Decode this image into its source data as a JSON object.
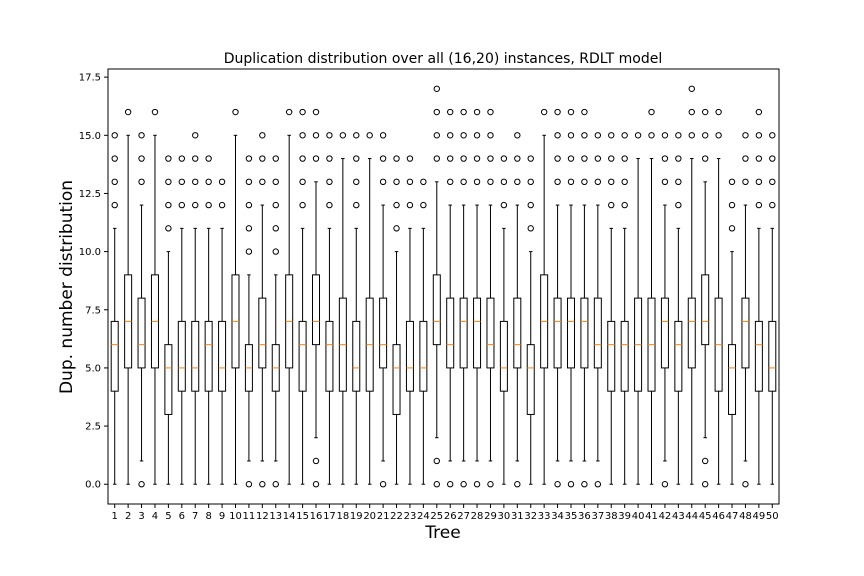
{
  "chart_data": {
    "type": "boxplot",
    "title": "Duplication distribution over all (16,20) instances, RDLT model",
    "xlabel": "Tree",
    "ylabel": "Dup. number distribution",
    "ylim": [
      -0.85,
      17.85
    ],
    "y_ticks": [
      "0.0",
      "2.5",
      "5.0",
      "7.5",
      "10.0",
      "12.5",
      "15.0",
      "17.5"
    ],
    "y_tick_values": [
      0,
      2.5,
      5,
      7.5,
      10,
      12.5,
      15,
      17.5
    ],
    "categories": [
      "1",
      "2",
      "3",
      "4",
      "5",
      "6",
      "7",
      "8",
      "9",
      "10",
      "11",
      "12",
      "13",
      "14",
      "15",
      "16",
      "17",
      "18",
      "19",
      "20",
      "21",
      "22",
      "23",
      "24",
      "25",
      "26",
      "27",
      "28",
      "29",
      "30",
      "31",
      "32",
      "33",
      "34",
      "35",
      "36",
      "37",
      "38",
      "39",
      "40",
      "41",
      "42",
      "43",
      "44",
      "45",
      "46",
      "47",
      "48",
      "49",
      "50"
    ],
    "grid": false,
    "colors": {
      "box": "#000000",
      "median": "#ff7f0e",
      "background": "#ffffff"
    },
    "boxes": [
      {
        "q1": 4,
        "median": 6,
        "q3": 7,
        "whislo": 0,
        "whishi": 11,
        "fliers": [
          12,
          13,
          14,
          15
        ]
      },
      {
        "q1": 5,
        "median": 7,
        "q3": 9,
        "whislo": 0,
        "whishi": 15,
        "fliers": [
          16
        ]
      },
      {
        "q1": 5,
        "median": 6,
        "q3": 8,
        "whislo": 1,
        "whishi": 12,
        "fliers": [
          0,
          13,
          14,
          15
        ]
      },
      {
        "q1": 5,
        "median": 7,
        "q3": 9,
        "whislo": 0,
        "whishi": 15,
        "fliers": [
          16
        ]
      },
      {
        "q1": 3,
        "median": 5,
        "q3": 6,
        "whislo": 0,
        "whishi": 10,
        "fliers": [
          11,
          12,
          13,
          14
        ]
      },
      {
        "q1": 4,
        "median": 5,
        "q3": 7,
        "whislo": 0,
        "whishi": 11,
        "fliers": [
          12,
          13,
          14
        ]
      },
      {
        "q1": 4,
        "median": 5,
        "q3": 7,
        "whislo": 0,
        "whishi": 11,
        "fliers": [
          12,
          13,
          14,
          15
        ]
      },
      {
        "q1": 4,
        "median": 6,
        "q3": 7,
        "whislo": 0,
        "whishi": 11,
        "fliers": [
          12,
          13,
          14
        ]
      },
      {
        "q1": 4,
        "median": 5,
        "q3": 7,
        "whislo": 0,
        "whishi": 11,
        "fliers": [
          12,
          13
        ]
      },
      {
        "q1": 5,
        "median": 7,
        "q3": 9,
        "whislo": 0,
        "whishi": 15,
        "fliers": [
          16
        ]
      },
      {
        "q1": 4,
        "median": 5,
        "q3": 6,
        "whislo": 1,
        "whishi": 9,
        "fliers": [
          0,
          10,
          11,
          12,
          13,
          14
        ]
      },
      {
        "q1": 5,
        "median": 6,
        "q3": 8,
        "whislo": 1,
        "whishi": 12,
        "fliers": [
          0,
          13,
          14,
          15
        ]
      },
      {
        "q1": 4,
        "median": 5,
        "q3": 6,
        "whislo": 1,
        "whishi": 9,
        "fliers": [
          0,
          10,
          11,
          12,
          13,
          14
        ]
      },
      {
        "q1": 5,
        "median": 7,
        "q3": 9,
        "whislo": 0,
        "whishi": 15,
        "fliers": [
          16
        ]
      },
      {
        "q1": 4,
        "median": 6,
        "q3": 7,
        "whislo": 0,
        "whishi": 11,
        "fliers": [
          12,
          13,
          14,
          15,
          16
        ]
      },
      {
        "q1": 6,
        "median": 7,
        "q3": 9,
        "whislo": 2,
        "whishi": 13,
        "fliers": [
          0,
          1,
          14,
          15,
          16
        ]
      },
      {
        "q1": 4,
        "median": 6,
        "q3": 7,
        "whislo": 0,
        "whishi": 11,
        "fliers": [
          12,
          13,
          14,
          15
        ]
      },
      {
        "q1": 4,
        "median": 6,
        "q3": 8,
        "whislo": 0,
        "whishi": 14,
        "fliers": [
          15
        ]
      },
      {
        "q1": 4,
        "median": 5,
        "q3": 7,
        "whislo": 0,
        "whishi": 11,
        "fliers": [
          12,
          13,
          14,
          15
        ]
      },
      {
        "q1": 4,
        "median": 6,
        "q3": 8,
        "whislo": 0,
        "whishi": 14,
        "fliers": [
          15
        ]
      },
      {
        "q1": 5,
        "median": 6,
        "q3": 8,
        "whislo": 1,
        "whishi": 12,
        "fliers": [
          0,
          13,
          14,
          15
        ]
      },
      {
        "q1": 3,
        "median": 5,
        "q3": 6,
        "whislo": 0,
        "whishi": 10,
        "fliers": [
          11,
          12,
          13,
          14
        ]
      },
      {
        "q1": 4,
        "median": 5,
        "q3": 7,
        "whislo": 0,
        "whishi": 11,
        "fliers": [
          12,
          13,
          14
        ]
      },
      {
        "q1": 4,
        "median": 5,
        "q3": 7,
        "whislo": 0,
        "whishi": 11,
        "fliers": [
          12,
          13
        ]
      },
      {
        "q1": 6,
        "median": 7,
        "q3": 9,
        "whislo": 2,
        "whishi": 13,
        "fliers": [
          0,
          1,
          14,
          15,
          16,
          17
        ]
      },
      {
        "q1": 5,
        "median": 6,
        "q3": 8,
        "whislo": 1,
        "whishi": 12,
        "fliers": [
          0,
          13,
          14,
          15,
          16
        ]
      },
      {
        "q1": 5,
        "median": 7,
        "q3": 8,
        "whislo": 1,
        "whishi": 12,
        "fliers": [
          0,
          13,
          14,
          15,
          16
        ]
      },
      {
        "q1": 5,
        "median": 7,
        "q3": 8,
        "whislo": 1,
        "whishi": 12,
        "fliers": [
          0,
          13,
          14,
          15,
          16
        ]
      },
      {
        "q1": 5,
        "median": 6,
        "q3": 8,
        "whislo": 1,
        "whishi": 12,
        "fliers": [
          0,
          13,
          14,
          15,
          16
        ]
      },
      {
        "q1": 4,
        "median": 5,
        "q3": 7,
        "whislo": 0,
        "whishi": 11,
        "fliers": [
          12,
          13,
          14
        ]
      },
      {
        "q1": 5,
        "median": 6,
        "q3": 8,
        "whislo": 1,
        "whishi": 12,
        "fliers": [
          0,
          13,
          14,
          15
        ]
      },
      {
        "q1": 3,
        "median": 5,
        "q3": 6,
        "whislo": 0,
        "whishi": 10,
        "fliers": [
          11,
          12,
          13,
          14
        ]
      },
      {
        "q1": 5,
        "median": 7,
        "q3": 9,
        "whislo": 0,
        "whishi": 15,
        "fliers": [
          16
        ]
      },
      {
        "q1": 5,
        "median": 7,
        "q3": 8,
        "whislo": 1,
        "whishi": 12,
        "fliers": [
          0,
          13,
          14,
          15,
          16
        ]
      },
      {
        "q1": 5,
        "median": 7,
        "q3": 8,
        "whislo": 1,
        "whishi": 12,
        "fliers": [
          0,
          13,
          14,
          15,
          16
        ]
      },
      {
        "q1": 5,
        "median": 7,
        "q3": 8,
        "whislo": 1,
        "whishi": 12,
        "fliers": [
          0,
          13,
          14,
          15,
          16
        ]
      },
      {
        "q1": 5,
        "median": 6,
        "q3": 8,
        "whislo": 1,
        "whishi": 12,
        "fliers": [
          0,
          13,
          14,
          15
        ]
      },
      {
        "q1": 4,
        "median": 6,
        "q3": 7,
        "whislo": 0,
        "whishi": 11,
        "fliers": [
          12,
          13,
          14,
          15
        ]
      },
      {
        "q1": 4,
        "median": 6,
        "q3": 7,
        "whislo": 0,
        "whishi": 11,
        "fliers": [
          12,
          13,
          14,
          15
        ]
      },
      {
        "q1": 4,
        "median": 6,
        "q3": 8,
        "whislo": 0,
        "whishi": 14,
        "fliers": [
          15
        ]
      },
      {
        "q1": 4,
        "median": 6,
        "q3": 8,
        "whislo": 0,
        "whishi": 14,
        "fliers": [
          15,
          16
        ]
      },
      {
        "q1": 5,
        "median": 7,
        "q3": 8,
        "whislo": 1,
        "whishi": 12,
        "fliers": [
          0,
          13,
          14,
          15
        ]
      },
      {
        "q1": 4,
        "median": 6,
        "q3": 7,
        "whislo": 0,
        "whishi": 11,
        "fliers": [
          12,
          13,
          14,
          15
        ]
      },
      {
        "q1": 5,
        "median": 7,
        "q3": 8,
        "whislo": 0,
        "whishi": 14,
        "fliers": [
          15,
          16,
          17
        ]
      },
      {
        "q1": 6,
        "median": 7,
        "q3": 9,
        "whislo": 2,
        "whishi": 13,
        "fliers": [
          0,
          1,
          14,
          15,
          16
        ]
      },
      {
        "q1": 4,
        "median": 6,
        "q3": 8,
        "whislo": 0,
        "whishi": 14,
        "fliers": [
          15,
          16
        ]
      },
      {
        "q1": 3,
        "median": 5,
        "q3": 6,
        "whislo": 0,
        "whishi": 10,
        "fliers": [
          11,
          12,
          13
        ]
      },
      {
        "q1": 5,
        "median": 7,
        "q3": 8,
        "whislo": 1,
        "whishi": 12,
        "fliers": [
          0,
          13,
          14,
          15
        ]
      },
      {
        "q1": 4,
        "median": 6,
        "q3": 7,
        "whislo": 0,
        "whishi": 11,
        "fliers": [
          12,
          13,
          14,
          15,
          16
        ]
      },
      {
        "q1": 4,
        "median": 5,
        "q3": 7,
        "whislo": 0,
        "whishi": 11,
        "fliers": [
          12,
          13,
          14,
          15
        ]
      }
    ]
  }
}
